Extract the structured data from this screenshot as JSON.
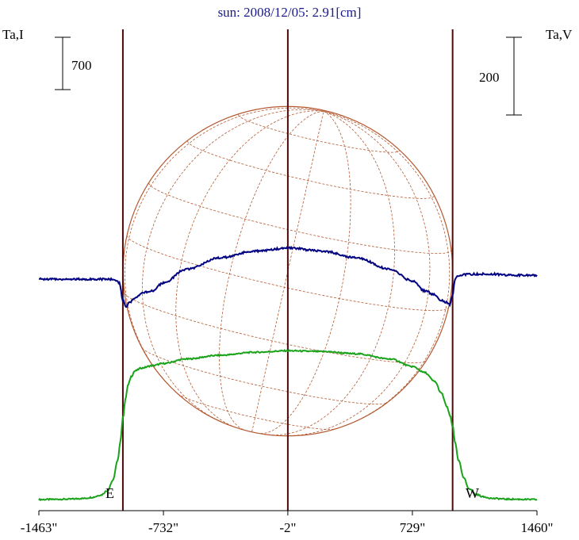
{
  "colors": {
    "background": "#ffffff",
    "title": "#1a1a8c",
    "intensity_series": "#1aa31a",
    "polarization_series": "#000080",
    "limb_lines": "#4a0a0a",
    "solar_disk": "#b45a32",
    "frame": "#000000"
  },
  "chart_data": {
    "type": "line",
    "title": "sun: 2008/12/05: 2.91[cm]",
    "left_axis_label": "Ta,I",
    "right_axis_label": "Ta,V",
    "x_tick_labels": [
      "-1463\"",
      "-732\"",
      "-2\"",
      "729\"",
      "1460\""
    ],
    "x_ticks": [
      -1463,
      -732,
      -2,
      729,
      1460
    ],
    "xlim": [
      -1463,
      1460
    ],
    "left_scale_bar": {
      "label": "700",
      "value": 700
    },
    "right_scale_bar": {
      "label": "200",
      "value": 200
    },
    "limb_markers": {
      "east_label": "E",
      "west_label": "W",
      "east_x": -970,
      "center_x": -2,
      "west_x": 965
    },
    "solar_disk": {
      "radius_arcsec": 967,
      "grid": "heliographic"
    },
    "series": [
      {
        "name": "Ta,I",
        "axis": "left",
        "relative_values": true,
        "x": [
          -1463,
          -1300,
          -1200,
          -1150,
          -1100,
          -1060,
          -1030,
          -1000,
          -985,
          -970,
          -955,
          -940,
          -920,
          -900,
          -860,
          -800,
          -732,
          -600,
          -400,
          -200,
          -2,
          200,
          400,
          600,
          729,
          800,
          860,
          900,
          930,
          950,
          965,
          980,
          1000,
          1030,
          1060,
          1100,
          1150,
          1200,
          1300,
          1460
        ],
        "y": [
          0,
          5,
          15,
          30,
          60,
          120,
          250,
          520,
          780,
          1090,
          1340,
          1530,
          1650,
          1720,
          1760,
          1790,
          1820,
          1880,
          1930,
          1970,
          1990,
          1980,
          1950,
          1880,
          1780,
          1700,
          1580,
          1420,
          1250,
          1120,
          980,
          760,
          520,
          290,
          150,
          70,
          35,
          15,
          5,
          0
        ]
      },
      {
        "name": "Ta,V",
        "axis": "right",
        "relative_values": true,
        "x": [
          -1463,
          -1200,
          -1060,
          -1020,
          -990,
          -970,
          -950,
          -930,
          -900,
          -850,
          -800,
          -732,
          -600,
          -400,
          -200,
          -2,
          200,
          400,
          600,
          729,
          800,
          860,
          900,
          930,
          950,
          965,
          980,
          1000,
          1030,
          1100,
          1200,
          1300,
          1460
        ],
        "y": [
          0,
          0,
          0,
          0,
          -10,
          -55,
          -70,
          -60,
          -50,
          -35,
          -30,
          -10,
          25,
          55,
          72,
          80,
          72,
          55,
          25,
          -5,
          -30,
          -40,
          -55,
          -60,
          -65,
          -40,
          0,
          10,
          12,
          13,
          13,
          10,
          10
        ]
      }
    ]
  }
}
